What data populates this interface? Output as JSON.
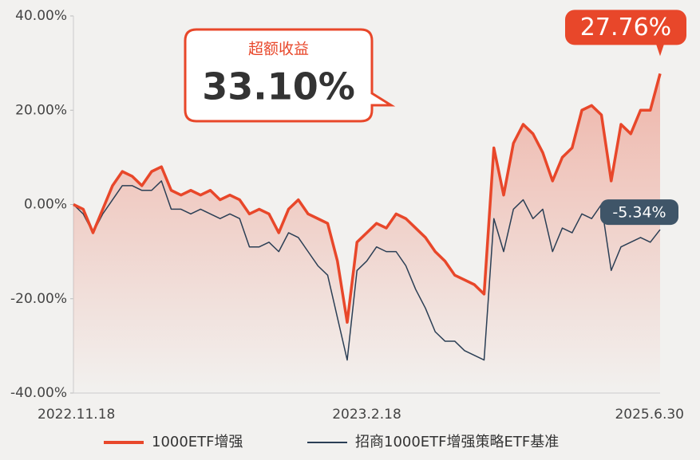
{
  "chart_data": {
    "type": "line",
    "categories": [
      "2022.11.18",
      null,
      null,
      null,
      null,
      null,
      null,
      null,
      null,
      null,
      null,
      null,
      null,
      null,
      null,
      null,
      null,
      null,
      null,
      null,
      null,
      null,
      null,
      null,
      null,
      null,
      null,
      null,
      null,
      null,
      "2023.2.18",
      null,
      null,
      null,
      null,
      null,
      null,
      null,
      null,
      null,
      null,
      null,
      null,
      null,
      null,
      null,
      null,
      null,
      null,
      null,
      null,
      null,
      null,
      null,
      null,
      null,
      null,
      null,
      null,
      null,
      "2025.6.30"
    ],
    "series": [
      {
        "name": "1000ETF增强",
        "color": "#e8472a",
        "values": [
          0,
          -1,
          -6,
          -1,
          4,
          7,
          6,
          4,
          7,
          8,
          3,
          2,
          3,
          2,
          3,
          1,
          2,
          1,
          -2,
          -1,
          -2,
          -6,
          -1,
          1,
          -2,
          -3,
          -4,
          -12,
          -25,
          -8,
          -6,
          -4,
          -5,
          -2,
          -3,
          -5,
          -7,
          -10,
          -12,
          -15,
          -16,
          -17,
          -19,
          12,
          2,
          13,
          17,
          15,
          11,
          5,
          10,
          12,
          20,
          21,
          19,
          5,
          17,
          15,
          20,
          20,
          27.76
        ],
        "value_labels": [
          null,
          null,
          null,
          null,
          null,
          null,
          null,
          null,
          null,
          null,
          null,
          null,
          null,
          null,
          null,
          null,
          null,
          null,
          null,
          null,
          null,
          null,
          null,
          null,
          null,
          null,
          null,
          null,
          null,
          null,
          null,
          null,
          null,
          null,
          null,
          null,
          null,
          null,
          null,
          null,
          null,
          null,
          null,
          null,
          null,
          null,
          null,
          null,
          null,
          null,
          null,
          null,
          null,
          null,
          null,
          null,
          null,
          null,
          null,
          null,
          "27.76%"
        ]
      },
      {
        "name": "招商1000ETF增强策略ETF基准",
        "color": "#2b3f55",
        "values": [
          0,
          -2,
          -6,
          -2,
          1,
          4,
          4,
          3,
          3,
          5,
          -1,
          -1,
          -2,
          -1,
          -2,
          -3,
          -2,
          -3,
          -9,
          -9,
          -8,
          -10,
          -6,
          -7,
          -10,
          -13,
          -15,
          -24,
          -33,
          -14,
          -12,
          -9,
          -10,
          -10,
          -13,
          -18,
          -22,
          -27,
          -29,
          -29,
          -31,
          -32,
          -33,
          -3,
          -10,
          -1,
          1,
          -3,
          -1,
          -10,
          -5,
          -6,
          -2,
          -3,
          0,
          -14,
          -9,
          -8,
          -7,
          -8,
          -5.34
        ],
        "value_labels": [
          null,
          null,
          null,
          null,
          null,
          null,
          null,
          null,
          null,
          null,
          null,
          null,
          null,
          null,
          null,
          null,
          null,
          null,
          null,
          null,
          null,
          null,
          null,
          null,
          null,
          null,
          null,
          null,
          null,
          null,
          null,
          null,
          null,
          null,
          null,
          null,
          null,
          null,
          null,
          null,
          null,
          null,
          null,
          null,
          null,
          null,
          null,
          null,
          null,
          null,
          null,
          null,
          null,
          null,
          null,
          null,
          null,
          null,
          null,
          null,
          "-5.34%"
        ]
      }
    ],
    "ylim": [
      -40,
      40
    ],
    "yticks": [
      {
        "value": -40,
        "label": "-40.00%"
      },
      {
        "value": -20,
        "label": "-20.00%"
      },
      {
        "value": 0,
        "label": "0.00%"
      },
      {
        "value": 20,
        "label": "20.00%"
      },
      {
        "value": 40,
        "label": "40.00%"
      }
    ],
    "annotation": {
      "title": "超额收益",
      "text": "33.10%"
    },
    "legend": "bottom"
  }
}
